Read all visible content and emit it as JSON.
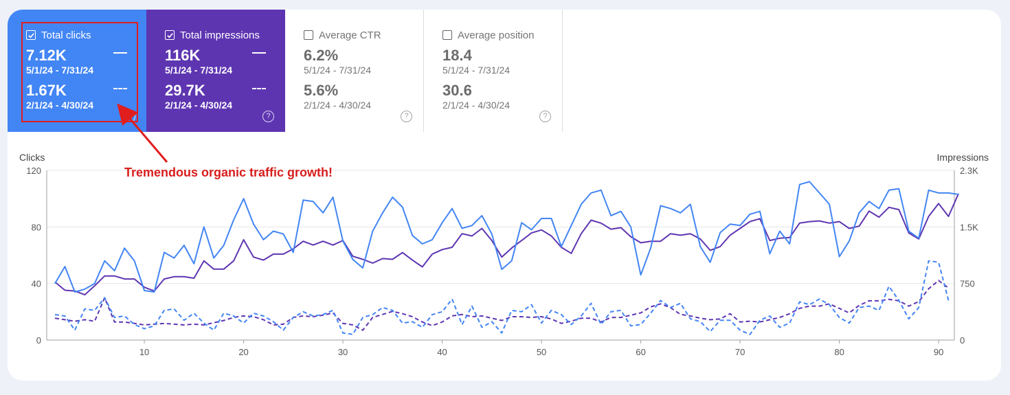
{
  "metrics": [
    {
      "label": "Total clicks",
      "checked": true,
      "current_value": "7.12K",
      "current_range": "5/1/24 - 7/31/24",
      "previous_value": "1.67K",
      "previous_range": "2/1/24 - 4/30/24",
      "color": "#4285f4"
    },
    {
      "label": "Total impressions",
      "checked": true,
      "current_value": "116K",
      "current_range": "5/1/24 - 7/31/24",
      "previous_value": "29.7K",
      "previous_range": "2/1/24 - 4/30/24",
      "color": "#5e35b1"
    },
    {
      "label": "Average CTR",
      "checked": false,
      "current_value": "6.2%",
      "current_range": "5/1/24 - 7/31/24",
      "previous_value": "5.6%",
      "previous_range": "2/1/24 - 4/30/24"
    },
    {
      "label": "Average position",
      "checked": false,
      "current_value": "18.4",
      "current_range": "5/1/24 - 7/31/24",
      "previous_value": "30.6",
      "previous_range": "2/1/24 - 4/30/24"
    }
  ],
  "help_glyph": "?",
  "annotation": "Tremendous organic traffic growth!",
  "chart_data": {
    "type": "line",
    "ylabel_left": "Clicks",
    "ylabel_right": "Impressions",
    "ylim_left": [
      0,
      120
    ],
    "ylim_right": [
      0,
      2250
    ],
    "yticks_left": [
      "0",
      "40",
      "80",
      "120"
    ],
    "yticks_right": [
      "0",
      "750",
      "1.5K",
      "2.3K"
    ],
    "xticks": [
      10,
      20,
      30,
      40,
      50,
      60,
      70,
      80,
      90
    ],
    "grid": true,
    "series": [
      {
        "name": "Total clicks",
        "period": "5/1/24 - 7/31/24",
        "axis": "left",
        "style": "solid",
        "color": "#4285f4",
        "values": [
          40,
          52,
          34,
          36,
          40,
          56,
          49,
          65,
          56,
          35,
          34,
          62,
          58,
          67,
          54,
          80,
          58,
          67,
          85,
          100,
          82,
          71,
          77,
          75,
          62,
          99,
          98,
          90,
          101,
          70,
          57,
          51,
          77,
          90,
          101,
          94,
          74,
          68,
          71,
          83,
          93,
          79,
          81,
          88,
          75,
          50,
          56,
          83,
          78,
          86,
          86,
          66,
          81,
          96,
          104,
          106,
          88,
          91,
          80,
          46,
          65,
          95,
          93,
          90,
          96,
          66,
          55,
          76,
          82,
          81,
          89,
          91,
          61,
          77,
          68,
          110,
          112,
          104,
          96,
          59,
          70,
          90,
          98,
          93,
          106,
          107,
          77,
          72,
          106,
          104,
          104,
          103
        ]
      },
      {
        "name": "Total impressions",
        "period": "5/1/24 - 7/31/24",
        "axis": "right",
        "style": "solid",
        "color": "#5e35b1",
        "values": [
          770,
          660,
          650,
          600,
          720,
          850,
          850,
          810,
          810,
          700,
          650,
          810,
          840,
          840,
          820,
          1050,
          940,
          940,
          1050,
          1330,
          1100,
          1060,
          1140,
          1140,
          1210,
          1310,
          1260,
          1310,
          1260,
          1320,
          1110,
          1070,
          1020,
          1080,
          1070,
          1160,
          1060,
          970,
          1140,
          1200,
          1230,
          1410,
          1380,
          1480,
          1320,
          1100,
          1220,
          1320,
          1420,
          1460,
          1380,
          1230,
          1150,
          1410,
          1590,
          1550,
          1470,
          1490,
          1370,
          1290,
          1310,
          1310,
          1410,
          1390,
          1410,
          1340,
          1190,
          1240,
          1390,
          1480,
          1570,
          1610,
          1320,
          1350,
          1360,
          1550,
          1570,
          1580,
          1550,
          1570,
          1480,
          1510,
          1710,
          1630,
          1760,
          1730,
          1420,
          1340,
          1640,
          1810,
          1640,
          1940
        ]
      },
      {
        "name": "Total clicks",
        "period": "2/1/24 - 4/30/24",
        "axis": "left",
        "style": "dashed",
        "color": "#4285f4",
        "values": [
          18,
          17,
          7,
          22,
          21,
          30,
          16,
          17,
          11,
          8,
          10,
          21,
          22,
          14,
          19,
          12,
          7,
          19,
          17,
          12,
          19,
          17,
          13,
          7,
          16,
          20,
          17,
          18,
          21,
          5,
          4,
          16,
          18,
          23,
          21,
          12,
          13,
          9,
          18,
          20,
          29,
          11,
          24,
          9,
          13,
          5,
          21,
          20,
          25,
          12,
          21,
          18,
          11,
          17,
          26,
          11,
          20,
          21,
          10,
          11,
          19,
          28,
          23,
          26,
          15,
          13,
          6,
          14,
          14,
          7,
          4,
          14,
          17,
          9,
          12,
          27,
          25,
          29,
          25,
          16,
          12,
          23,
          24,
          21,
          38,
          28,
          15,
          23,
          56,
          55,
          28
        ]
      },
      {
        "name": "Total impressions",
        "period": "2/1/24 - 4/30/24",
        "axis": "right",
        "style": "dashed",
        "color": "#5e35b1",
        "values": [
          290,
          270,
          250,
          270,
          250,
          560,
          240,
          240,
          220,
          200,
          210,
          220,
          210,
          200,
          210,
          200,
          230,
          260,
          300,
          320,
          310,
          270,
          200,
          210,
          300,
          320,
          310,
          330,
          360,
          220,
          200,
          130,
          300,
          340,
          380,
          350,
          310,
          240,
          190,
          240,
          320,
          340,
          310,
          320,
          290,
          260,
          310,
          310,
          300,
          310,
          280,
          220,
          250,
          290,
          290,
          240,
          300,
          300,
          330,
          360,
          440,
          480,
          430,
          340,
          320,
          290,
          270,
          280,
          350,
          240,
          250,
          240,
          270,
          300,
          350,
          420,
          450,
          450,
          480,
          420,
          360,
          460,
          520,
          520,
          540,
          520,
          450,
          510,
          680,
          790,
          690
        ]
      }
    ]
  }
}
